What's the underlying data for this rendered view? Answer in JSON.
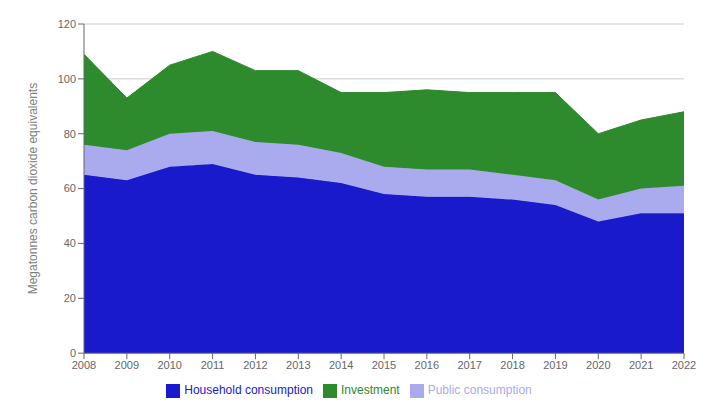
{
  "chart_data": {
    "type": "area",
    "stacked": true,
    "ylabel": "Megatonnes carbon dioxide equivalents",
    "x": [
      2008,
      2009,
      2010,
      2011,
      2012,
      2013,
      2014,
      2015,
      2016,
      2017,
      2018,
      2019,
      2020,
      2021,
      2022
    ],
    "xlim": [
      2008,
      2022
    ],
    "xticks": [
      2008,
      2009,
      2010,
      2011,
      2012,
      2013,
      2014,
      2015,
      2016,
      2017,
      2018,
      2019,
      2020,
      2021,
      2022
    ],
    "ylim": [
      0,
      120
    ],
    "yticks": [
      0,
      20,
      40,
      60,
      80,
      100,
      120
    ],
    "grid": true,
    "legend": "bottom",
    "series": [
      {
        "name": "Household consumption",
        "color": "#1a1acd",
        "values": [
          65,
          63,
          68,
          69,
          65,
          64,
          62,
          58,
          57,
          57,
          56,
          54,
          48,
          51,
          51
        ]
      },
      {
        "name": "Public consumption",
        "color": "#aaaaee",
        "values": [
          11,
          11,
          12,
          12,
          12,
          12,
          11,
          10,
          10,
          10,
          9,
          9,
          8,
          9,
          10
        ]
      },
      {
        "name": "Investment",
        "color": "#2d8a2d",
        "values": [
          33,
          19,
          25,
          29,
          26,
          27,
          22,
          27,
          29,
          28,
          30,
          32,
          24,
          25,
          27
        ]
      }
    ]
  }
}
